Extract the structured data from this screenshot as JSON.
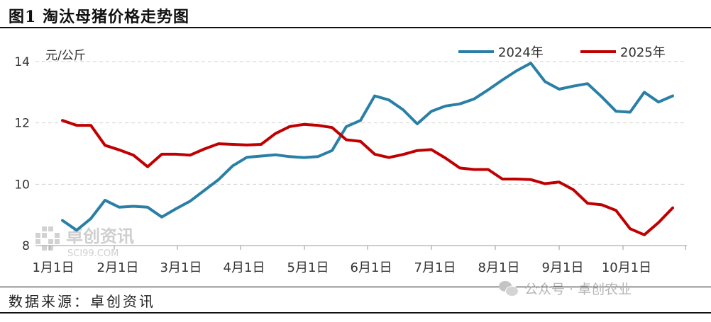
{
  "header": {
    "title": "图1  淘汰母猪价格走势图"
  },
  "footer": {
    "source": "数据来源：卓创资讯",
    "wechat_account": "公众号 · 卓创农业"
  },
  "watermark": {
    "brand": "卓创资讯",
    "code": "SCI99.COM"
  },
  "chart_data": {
    "type": "line",
    "unit_label": "元/公斤",
    "ylim": [
      8,
      14
    ],
    "yticks": [
      8,
      10,
      12,
      14
    ],
    "grid": "horizontal-dashed",
    "legend_position": "top-right",
    "x_tick_labels": [
      "1月1日",
      "2月1日",
      "3月1日",
      "4月1日",
      "5月1日",
      "6月1日",
      "7月1日",
      "8月1日",
      "9月1日",
      "10月1日"
    ],
    "series": [
      {
        "name": "2024年",
        "color": "#2a7fa6",
        "values": [
          8.82,
          8.5,
          8.88,
          9.48,
          9.25,
          9.28,
          9.25,
          8.93,
          9.2,
          9.45,
          9.8,
          10.15,
          10.6,
          10.88,
          10.92,
          10.96,
          10.9,
          10.87,
          10.9,
          11.1,
          11.88,
          12.08,
          12.88,
          12.75,
          12.43,
          11.97,
          12.38,
          12.55,
          12.62,
          12.78,
          13.08,
          13.4,
          13.7,
          13.95,
          13.35,
          13.1,
          13.2,
          13.28,
          12.85,
          12.38,
          12.35,
          13.0,
          12.68,
          12.88
        ]
      },
      {
        "name": "2025年",
        "color": "#c00000",
        "values": [
          12.08,
          11.92,
          11.92,
          11.27,
          11.12,
          10.95,
          10.57,
          10.98,
          10.98,
          10.95,
          11.15,
          11.32,
          11.3,
          11.28,
          11.3,
          11.65,
          11.88,
          11.95,
          11.92,
          11.85,
          11.45,
          11.4,
          10.98,
          10.87,
          10.97,
          11.1,
          11.13,
          10.85,
          10.53,
          10.48,
          10.48,
          10.17,
          10.17,
          10.15,
          10.02,
          10.07,
          9.82,
          9.38,
          9.33,
          9.15,
          8.55,
          8.35,
          8.75,
          9.23
        ]
      }
    ]
  }
}
